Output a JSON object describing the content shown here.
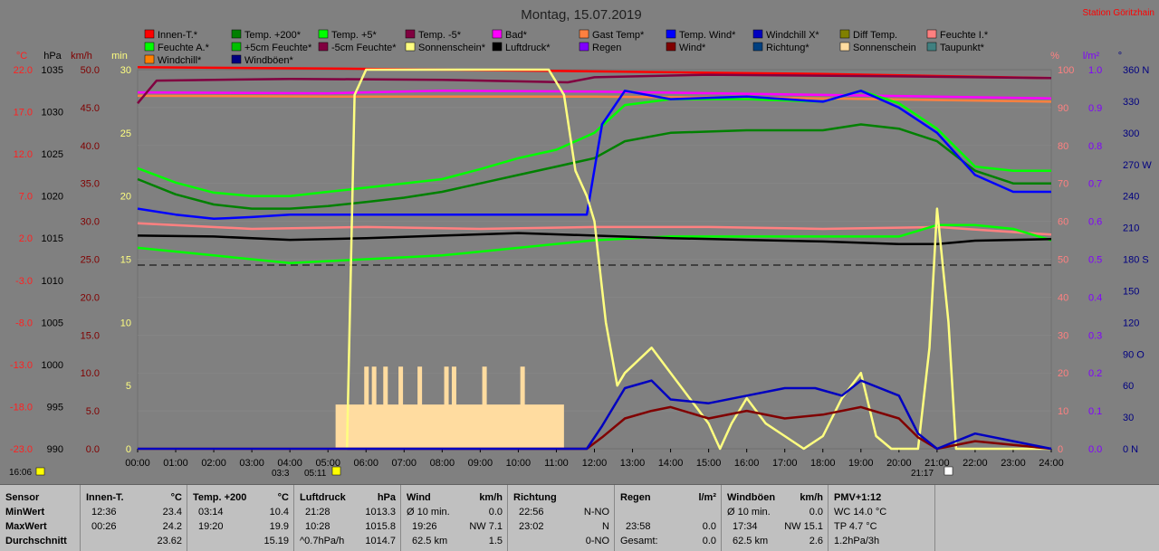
{
  "chart_data": {
    "type": "line",
    "title": "Montag, 15.07.2019",
    "station_label": "Station Göritzhain",
    "x_ticks": [
      "00:00",
      "01:00",
      "02:00",
      "03:00",
      "04:00",
      "05:00",
      "06:00",
      "07:00",
      "08:00",
      "09:00",
      "10:00",
      "11:00",
      "12:00",
      "13:00",
      "14:00",
      "15:00",
      "16:00",
      "17:00",
      "18:00",
      "19:00",
      "20:00",
      "21:00",
      "22:00",
      "23:00",
      "24:00"
    ],
    "xlim": [
      0,
      24
    ],
    "axes_left": [
      {
        "unit": "°C",
        "color": "#ff2020",
        "ticks": [
          "22.0",
          "17.0",
          "12.0",
          "7.0",
          "2.0",
          "-3.0",
          "-8.0",
          "-13.0",
          "-18.0",
          "-23.0"
        ],
        "range": [
          -23,
          22
        ]
      },
      {
        "unit": "hPa",
        "color": "#000000",
        "ticks": [
          "1035",
          "1030",
          "1025",
          "1020",
          "1015",
          "1010",
          "1005",
          "1000",
          "995",
          "990"
        ],
        "range": [
          990,
          1035
        ]
      },
      {
        "unit": "km/h",
        "color": "#800000",
        "ticks": [
          "50.0",
          "45.0",
          "40.0",
          "35.0",
          "30.0",
          "25.0",
          "20.0",
          "15.0",
          "10.0",
          "5.0",
          "0.0"
        ],
        "range": [
          0,
          50
        ]
      },
      {
        "unit": "min",
        "color": "#ffff80",
        "ticks": [
          "30",
          "25",
          "20",
          "15",
          "10",
          "5",
          "0"
        ],
        "range": [
          0,
          30
        ]
      }
    ],
    "axes_right": [
      {
        "unit": "%",
        "color": "#ff8080",
        "ticks": [
          "100",
          "90",
          "80",
          "70",
          "60",
          "50",
          "40",
          "30",
          "20",
          "10",
          "0"
        ],
        "range": [
          0,
          100
        ]
      },
      {
        "unit": "l/m²",
        "color": "#8000ff",
        "ticks": [
          "1.0",
          "0.9",
          "0.8",
          "0.7",
          "0.6",
          "0.5",
          "0.4",
          "0.3",
          "0.2",
          "0.1",
          "0.0"
        ],
        "range": [
          0,
          1
        ]
      },
      {
        "unit": "°",
        "color": "#000080",
        "ticks": [
          "360 N",
          "330",
          "300",
          "270 W",
          "240",
          "210",
          "180 S",
          "150",
          "120",
          "90 O",
          "60",
          "30",
          "0 N"
        ],
        "range": [
          0,
          360
        ]
      }
    ],
    "legend": [
      {
        "name": "Innen-T.*",
        "color": "#ff0000"
      },
      {
        "name": "Temp. +200*",
        "color": "#008000"
      },
      {
        "name": "Temp. +5*",
        "color": "#00ff00"
      },
      {
        "name": "Temp. -5*",
        "color": "#800040"
      },
      {
        "name": "Bad*",
        "color": "#ff00ff"
      },
      {
        "name": "Gast Temp*",
        "color": "#ff8040"
      },
      {
        "name": "Temp. Wind*",
        "color": "#0000ff"
      },
      {
        "name": "Windchill X*",
        "color": "#0000c0"
      },
      {
        "name": "Diff Temp.",
        "color": "#808000"
      },
      {
        "name": "Feuchte I.*",
        "color": "#ff8080"
      },
      {
        "name": "Feuchte A.*",
        "color": "#00ff00"
      },
      {
        "name": "+5cm Feuchte*",
        "color": "#00c000"
      },
      {
        "name": "-5cm Feuchte*",
        "color": "#800040"
      },
      {
        "name": "Sonnenschein*",
        "color": "#ffff80"
      },
      {
        "name": "Luftdruck*",
        "color": "#000000"
      },
      {
        "name": "Regen",
        "color": "#8000ff"
      },
      {
        "name": "Wind*",
        "color": "#800000"
      },
      {
        "name": "Richtung*",
        "color": "#004080"
      },
      {
        "name": "Sonnenschein",
        "color": "#ffdca0"
      },
      {
        "name": "Taupunkt*",
        "color": "#408080"
      },
      {
        "name": "Windchill*",
        "color": "#ff8000"
      },
      {
        "name": "Windböen*",
        "color": "#000080"
      }
    ],
    "series": [
      {
        "name": "Innen-T.*",
        "color": "#ff0000",
        "axis": "°C",
        "x": [
          0,
          6,
          12,
          18,
          24
        ],
        "y": [
          22.3,
          22.1,
          21.8,
          21.5,
          21.0
        ]
      },
      {
        "name": "Bad*",
        "color": "#ff00ff",
        "axis": "°C",
        "x": [
          0,
          5,
          8,
          12,
          18,
          24
        ],
        "y": [
          19.3,
          19.2,
          19.5,
          19.4,
          19.0,
          18.6
        ]
      },
      {
        "name": "Gast Temp*",
        "color": "#ff8040",
        "axis": "°C",
        "x": [
          0,
          6,
          12,
          18,
          24
        ],
        "y": [
          18.9,
          18.8,
          18.8,
          18.6,
          18.2
        ]
      },
      {
        "name": "Temp. -5*",
        "color": "#800040",
        "axis": "°C",
        "x": [
          0,
          0.5,
          4,
          8,
          11.3,
          12,
          15,
          20,
          24
        ],
        "y": [
          18.0,
          20.7,
          20.9,
          20.8,
          20.5,
          21.1,
          21.4,
          21.2,
          21.0
        ]
      },
      {
        "name": "Temp. +5*",
        "color": "#00ff00",
        "axis": "°C",
        "x": [
          0,
          1,
          2,
          3,
          4,
          5,
          6,
          7,
          8,
          9,
          10,
          11,
          12,
          12.8,
          14,
          16,
          18,
          19,
          20,
          21,
          22,
          23,
          24
        ],
        "y": [
          10.3,
          8.6,
          7.4,
          7.0,
          7.0,
          7.5,
          8.0,
          8.5,
          9.0,
          10.2,
          11.5,
          12.5,
          14.5,
          17.8,
          18.5,
          18.5,
          18.2,
          19.5,
          18.0,
          15.0,
          10.5,
          10.0,
          10.0
        ]
      },
      {
        "name": "Temp. +200*",
        "color": "#008000",
        "axis": "°C",
        "x": [
          0,
          1,
          2,
          3,
          4,
          5,
          6,
          7,
          8,
          9,
          10,
          11,
          12,
          12.8,
          14,
          16,
          18,
          19,
          20,
          21,
          22,
          23,
          24
        ],
        "y": [
          9.0,
          7.2,
          6.0,
          5.5,
          5.5,
          5.8,
          6.3,
          6.8,
          7.5,
          8.5,
          9.5,
          10.5,
          11.5,
          13.5,
          14.5,
          14.8,
          14.8,
          15.5,
          15.0,
          13.5,
          10.0,
          8.5,
          8.5
        ]
      },
      {
        "name": "Temp. Wind*",
        "color": "#0000ff",
        "axis": "°C",
        "x": [
          0,
          1,
          2,
          3,
          4,
          5,
          6,
          7,
          8,
          9,
          10,
          11,
          11.8,
          12.2,
          12.8,
          14,
          16,
          18,
          19,
          20,
          21,
          22,
          23,
          24
        ],
        "y": [
          5.5,
          4.8,
          4.3,
          4.5,
          4.8,
          4.8,
          4.8,
          4.8,
          4.8,
          4.8,
          4.8,
          4.8,
          4.8,
          15.5,
          19.5,
          18.5,
          18.8,
          18.2,
          19.5,
          17.5,
          14.5,
          9.5,
          7.5,
          7.5
        ]
      },
      {
        "name": "Feuchte I.*",
        "color": "#ff8080",
        "axis": "%",
        "x": [
          0,
          3,
          6,
          9,
          12,
          15,
          18,
          21,
          24
        ],
        "y": [
          59.5,
          58,
          58.5,
          58,
          58.5,
          58.5,
          58,
          58.5,
          56.5
        ]
      },
      {
        "name": "Feuchte A.*",
        "color": "#00ff00",
        "axis": "%",
        "x": [
          0,
          2,
          4,
          6,
          8,
          10,
          12,
          14,
          16,
          18,
          20,
          21,
          22,
          23,
          24
        ],
        "y": [
          53,
          51,
          49,
          50,
          51,
          53,
          55,
          56,
          56,
          56,
          56,
          59,
          59,
          58,
          55
        ]
      },
      {
        "name": "Luftdruck*",
        "color": "#000000",
        "axis": "hPa",
        "x": [
          0,
          2,
          4,
          6,
          8,
          10,
          12,
          14,
          16,
          18,
          20,
          21,
          22,
          24
        ],
        "y": [
          1015.3,
          1015.2,
          1014.8,
          1015.0,
          1015.3,
          1015.6,
          1015.3,
          1015.0,
          1014.8,
          1014.6,
          1014.3,
          1014.3,
          1014.7,
          1014.9
        ]
      },
      {
        "name": "Sonnenschein*",
        "color": "#ffff80",
        "axis": "min",
        "x": [
          0,
          5.5,
          5.7,
          6,
          10.8,
          11.2,
          11.5,
          11.8,
          12,
          12.3,
          12.6,
          12.8,
          13.5,
          14,
          14.5,
          15,
          15.3,
          15.6,
          16,
          16.5,
          17,
          17.5,
          18,
          18.5,
          19,
          19.4,
          19.8,
          20,
          20.5,
          20.8,
          21,
          21.3,
          21.5,
          22,
          24
        ],
        "y": [
          0,
          0,
          28,
          30,
          30,
          28,
          22,
          20,
          18,
          10,
          5,
          6,
          8,
          6,
          4,
          2,
          0,
          2,
          4,
          2,
          1,
          0,
          1,
          4,
          6,
          1,
          0,
          0,
          0,
          8,
          19,
          10,
          0,
          0,
          0
        ]
      },
      {
        "name": "Wind*",
        "color": "#800000",
        "axis": "km/h",
        "x": [
          0,
          11.8,
          12.2,
          12.8,
          13.5,
          14,
          15,
          16,
          17,
          18,
          19,
          20,
          20.5,
          21,
          22,
          23,
          24
        ],
        "y": [
          0,
          0,
          1.5,
          4,
          5,
          5.5,
          4,
          5,
          4,
          4.5,
          5.5,
          4,
          1.5,
          0,
          1,
          0.5,
          0
        ]
      },
      {
        "name": "Windböen*",
        "color": "#0000c0",
        "axis": "km/h",
        "x": [
          0,
          11.8,
          12.2,
          12.8,
          13.5,
          14,
          15,
          16,
          17,
          17.8,
          18.5,
          19,
          20,
          20.5,
          21,
          22,
          23,
          24
        ],
        "y": [
          0,
          0,
          3,
          8,
          9,
          6.5,
          6,
          7,
          8,
          8,
          7,
          9,
          7,
          2,
          0,
          2,
          1,
          0
        ]
      }
    ],
    "sunshine_bars": {
      "x_start": 5.2,
      "x_end": 11.2,
      "level": 3.5,
      "spikes": [
        6,
        6.2,
        6.5,
        6.9,
        7.4,
        8.1,
        8.3,
        9.1,
        10.1
      ],
      "spike_height": 6.5
    }
  },
  "footer": {
    "start_time": "16:06",
    "marker_left": "03:3",
    "marker_left2": "05:11",
    "marker_right": "21:17"
  },
  "table": {
    "row_labels": [
      "Sensor",
      "MinWert",
      "MaxWert",
      "Durchschnitt"
    ],
    "innen": {
      "title": "Innen-T.",
      "unit": "°C",
      "min_time": "12:36",
      "min_val": "23.4",
      "max_time": "00:26",
      "max_val": "24.2",
      "avg": "23.62"
    },
    "temp200": {
      "title": "Temp. +200",
      "unit": "°C",
      "min_time": "03:14",
      "min_val": "10.4",
      "max_time": "19:20",
      "max_val": "19.9",
      "avg": "15.19"
    },
    "luftdruck": {
      "title": "Luftdruck",
      "unit": "hPa",
      "min_time": "21:28",
      "min_val": "1013.3",
      "max_time": "10:28",
      "max_val": "1015.8",
      "avg_label": "^0.7hPa/h",
      "avg": "1014.7"
    },
    "wind": {
      "title": "Wind",
      "unit": "km/h",
      "min_label": "Ø 10 min.",
      "min_val": "0.0",
      "max_time": "19:26",
      "max_val": "NW 7.1",
      "avg_label": "62.5 km",
      "avg": "1.5"
    },
    "richtung": {
      "title": "Richtung",
      "min_time": "22:56",
      "min_val": "N-NO",
      "max_time": "23:02",
      "max_val": "N",
      "avg": "0-NO"
    },
    "regen": {
      "title": "Regen",
      "unit": "l/m²",
      "max_time": "23:58",
      "max_val": "0.0",
      "avg_label": "Gesamt:",
      "avg": "0.0"
    },
    "boen": {
      "title": "Windböen",
      "unit": "km/h",
      "min_label": "Ø 10 min.",
      "min_val": "0.0",
      "max_time": "17:34",
      "max_val": "NW 15.1",
      "avg_label": "62.5 km",
      "avg": "2.6"
    },
    "pmv": {
      "title": "PMV+1:12",
      "min_val": "WC 14.0 °C",
      "max_val": "TP 4.7 °C",
      "avg": "1.2hPa/3h"
    }
  }
}
